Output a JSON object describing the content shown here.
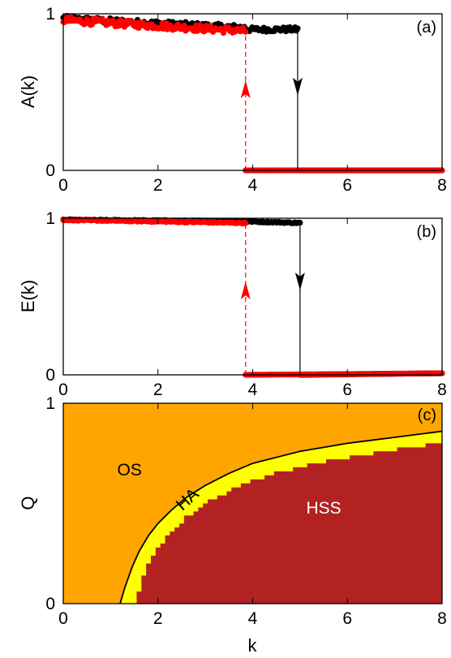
{
  "chart_data": [
    {
      "type": "scatter",
      "panel_label": "(a)",
      "ylabel": "A(k)",
      "xlabel": "",
      "xlim": [
        0,
        8
      ],
      "ylim": [
        0,
        1
      ],
      "x_ticks": [
        "0",
        "2",
        "4",
        "6",
        "8"
      ],
      "y_ticks": [
        "0",
        "1"
      ],
      "grid": false,
      "legend": "none",
      "series": [
        {
          "color": "#000000",
          "marker": "dots",
          "segments": [
            {
              "x": [
                0.0,
                3.85
              ],
              "y": [
                0.97,
                0.91
              ],
              "jitter": 0.018
            },
            {
              "x": [
                3.85,
                4.95
              ],
              "y": [
                0.9,
                0.9
              ],
              "jitter": 0.015
            },
            {
              "x": [
                4.95,
                8.0
              ],
              "y": [
                0.0,
                0.0
              ],
              "jitter": 0.0
            }
          ]
        },
        {
          "color": "#ff0000",
          "marker": "dots",
          "segments": [
            {
              "x": [
                0.0,
                3.85
              ],
              "y": [
                0.96,
                0.89
              ],
              "jitter": 0.022
            },
            {
              "x": [
                3.85,
                8.0
              ],
              "y": [
                0.0,
                0.0
              ],
              "jitter": 0.0
            }
          ]
        }
      ],
      "transitions": [
        {
          "x": 3.85,
          "y_from": 0.0,
          "y_to": 0.9,
          "color": "#ff0000",
          "style": "dashed",
          "arrow_at": 0.57,
          "direction": "up"
        },
        {
          "x": 4.95,
          "y_from": 0.9,
          "y_to": 0.0,
          "color": "#000000",
          "style": "solid",
          "arrow_at": 0.4,
          "direction": "down"
        }
      ]
    },
    {
      "type": "scatter",
      "panel_label": "(b)",
      "ylabel": "E(k)",
      "xlabel": "",
      "xlim": [
        0,
        8
      ],
      "ylim": [
        0,
        1
      ],
      "x_ticks": [
        "0",
        "2",
        "4",
        "6",
        "8"
      ],
      "y_ticks": [
        "0",
        "1"
      ],
      "grid": false,
      "legend": "none",
      "series": [
        {
          "color": "#000000",
          "marker": "dots",
          "segments": [
            {
              "x": [
                0.0,
                3.85
              ],
              "y": [
                0.99,
                0.98
              ],
              "jitter": 0.004
            },
            {
              "x": [
                3.85,
                5.0
              ],
              "y": [
                0.98,
                0.97
              ],
              "jitter": 0.004
            },
            {
              "x": [
                5.0,
                8.0
              ],
              "y": [
                0.0,
                0.01
              ],
              "jitter": 0.0
            }
          ]
        },
        {
          "color": "#ff0000",
          "marker": "dots",
          "segments": [
            {
              "x": [
                0.0,
                3.85
              ],
              "y": [
                0.99,
                0.97
              ],
              "jitter": 0.004
            },
            {
              "x": [
                3.85,
                8.0
              ],
              "y": [
                0.0,
                0.01
              ],
              "jitter": 0.0
            }
          ]
        }
      ],
      "transitions": [
        {
          "x": 3.85,
          "y_from": 0.0,
          "y_to": 0.97,
          "color": "#ff0000",
          "style": "dashed",
          "arrow_at": 0.55,
          "direction": "up"
        },
        {
          "x": 5.0,
          "y_from": 0.97,
          "y_to": 0.0,
          "color": "#000000",
          "style": "solid",
          "arrow_at": 0.38,
          "direction": "down"
        }
      ]
    },
    {
      "type": "heatmap",
      "panel_label": "(c)",
      "ylabel": "Q",
      "xlabel": "k",
      "xlim": [
        0,
        8
      ],
      "ylim": [
        0,
        1
      ],
      "x_ticks": [
        "0",
        "2",
        "4",
        "6",
        "8"
      ],
      "y_ticks": [
        "0",
        "1"
      ],
      "grid": false,
      "legend": "none",
      "regions": [
        {
          "label": "OS",
          "color": "#ffa500",
          "label_at": [
            1.4,
            0.64
          ],
          "label_color": "#000000"
        },
        {
          "label": "HA",
          "color": "#ffff00",
          "label_at": [
            2.7,
            0.5
          ],
          "label_color": "#000000",
          "rotate": -42
        },
        {
          "label": "HSS",
          "color": "#b22222",
          "label_at": [
            5.5,
            0.45
          ],
          "label_color": "#ffffff"
        }
      ],
      "boundary_OS_HA": {
        "k": [
          1.2,
          1.3,
          1.45,
          1.6,
          1.8,
          2.0,
          2.3,
          2.6,
          3.0,
          3.5,
          4.0,
          4.5,
          5.0,
          5.5,
          6.0,
          6.5,
          7.0,
          7.5,
          8.0
        ],
        "Q": [
          0.0,
          0.08,
          0.18,
          0.26,
          0.34,
          0.4,
          0.47,
          0.53,
          0.59,
          0.65,
          0.7,
          0.73,
          0.76,
          0.78,
          0.8,
          0.815,
          0.83,
          0.845,
          0.86
        ]
      },
      "boundary_HA_HSS": {
        "k": [
          1.55,
          1.6,
          1.7,
          1.8,
          2.0,
          2.3,
          2.6,
          3.0,
          3.5,
          4.0,
          4.5,
          5.0,
          5.5,
          6.0,
          6.5,
          7.0,
          7.5,
          8.0
        ],
        "Q": [
          0.0,
          0.06,
          0.13,
          0.2,
          0.28,
          0.36,
          0.43,
          0.5,
          0.56,
          0.61,
          0.65,
          0.68,
          0.71,
          0.73,
          0.75,
          0.77,
          0.785,
          0.8
        ]
      }
    }
  ]
}
